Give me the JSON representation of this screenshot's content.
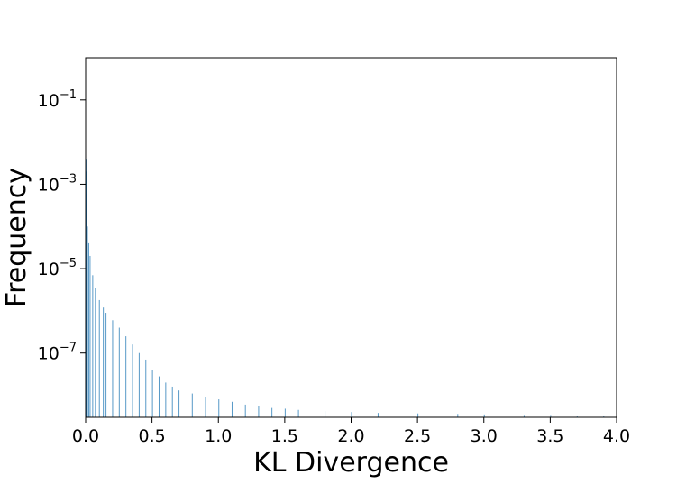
{
  "chart_data": {
    "type": "bar",
    "title": "",
    "xlabel": "KL Divergence",
    "ylabel": "Frequency",
    "xlim": [
      0,
      4.0
    ],
    "ylim": [
      3e-09,
      1.0
    ],
    "yscale": "log",
    "grid": false,
    "legend": "none",
    "x_ticks": [
      0.0,
      0.5,
      1.0,
      1.5,
      2.0,
      2.5,
      3.0,
      3.5,
      4.0
    ],
    "x_tick_labels": [
      "0.0",
      "0.5",
      "1.0",
      "1.5",
      "2.0",
      "2.5",
      "3.0",
      "3.5",
      "4.0"
    ],
    "y_ticks": [
      {
        "value": 0.1,
        "base": "10",
        "exp": "−1"
      },
      {
        "value": 0.001,
        "base": "10",
        "exp": "−3"
      },
      {
        "value": 1e-05,
        "base": "10",
        "exp": "−5"
      },
      {
        "value": 1e-07,
        "base": "10",
        "exp": "−7"
      }
    ],
    "bar_color": "#1f77b4",
    "bar_width": 0.002,
    "series": [
      {
        "x": [
          0.0,
          0.002,
          0.005,
          0.01,
          0.02,
          0.03,
          0.05,
          0.07,
          0.1,
          0.13,
          0.15,
          0.2,
          0.25,
          0.3,
          0.35,
          0.4,
          0.45,
          0.5,
          0.55,
          0.6,
          0.65,
          0.7,
          0.8,
          0.9,
          1.0,
          1.1,
          1.2,
          1.3,
          1.4,
          1.5,
          1.6,
          1.8,
          2.0,
          2.2,
          2.5,
          2.8,
          3.0,
          3.3,
          3.5,
          3.7,
          3.9
        ],
        "y": [
          0.004,
          0.002,
          0.0006,
          0.0001,
          4e-05,
          2e-05,
          7e-06,
          3.5e-06,
          1.8e-06,
          1.2e-06,
          9e-07,
          6e-07,
          4e-07,
          2.5e-07,
          1.6e-07,
          1e-07,
          7e-08,
          4e-08,
          2.8e-08,
          2e-08,
          1.6e-08,
          1.3e-08,
          1.1e-08,
          9e-09,
          8e-09,
          7e-09,
          6e-09,
          5.5e-09,
          5e-09,
          4.8e-09,
          4.5e-09,
          4.2e-09,
          4e-09,
          3.8e-09,
          3.7e-09,
          3.6e-09,
          3.5e-09,
          3.4e-09,
          3.4e-09,
          3.3e-09,
          3.3e-09
        ]
      }
    ]
  }
}
